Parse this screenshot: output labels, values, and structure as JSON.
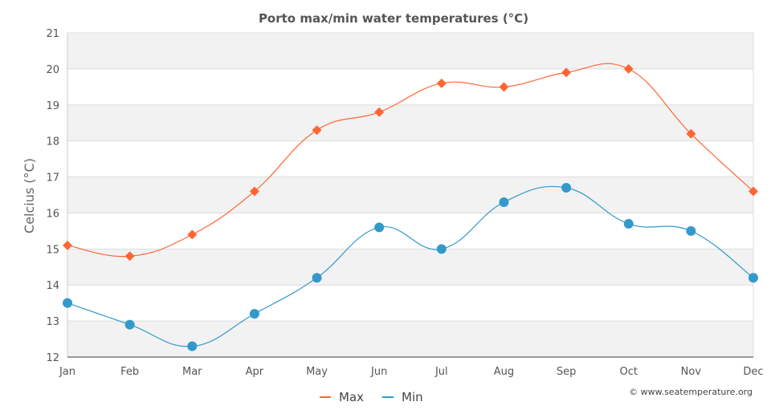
{
  "chart_data": {
    "type": "line",
    "title": "Porto max/min water temperatures (°C)",
    "xlabel": "",
    "ylabel": "Celcius (°C)",
    "ylim": [
      12,
      21
    ],
    "yticks": [
      12,
      13,
      14,
      15,
      16,
      17,
      18,
      19,
      20,
      21
    ],
    "categories": [
      "Jan",
      "Feb",
      "Mar",
      "Apr",
      "May",
      "Jun",
      "Jul",
      "Aug",
      "Sep",
      "Oct",
      "Nov",
      "Dec"
    ],
    "series": [
      {
        "name": "Max",
        "color": "#ff6633",
        "marker": "diamond",
        "values": [
          15.1,
          14.8,
          15.4,
          16.6,
          18.3,
          18.8,
          19.6,
          19.5,
          19.9,
          20.0,
          18.2,
          16.6
        ]
      },
      {
        "name": "Min",
        "color": "#3399cc",
        "marker": "circle",
        "values": [
          13.5,
          12.9,
          12.3,
          13.2,
          14.2,
          15.6,
          15.0,
          16.3,
          16.7,
          15.7,
          15.5,
          14.2
        ]
      }
    ],
    "grid": "alternating horizontal bands",
    "legend_position": "bottom-center",
    "credit": "© www.seatemperature.org"
  }
}
